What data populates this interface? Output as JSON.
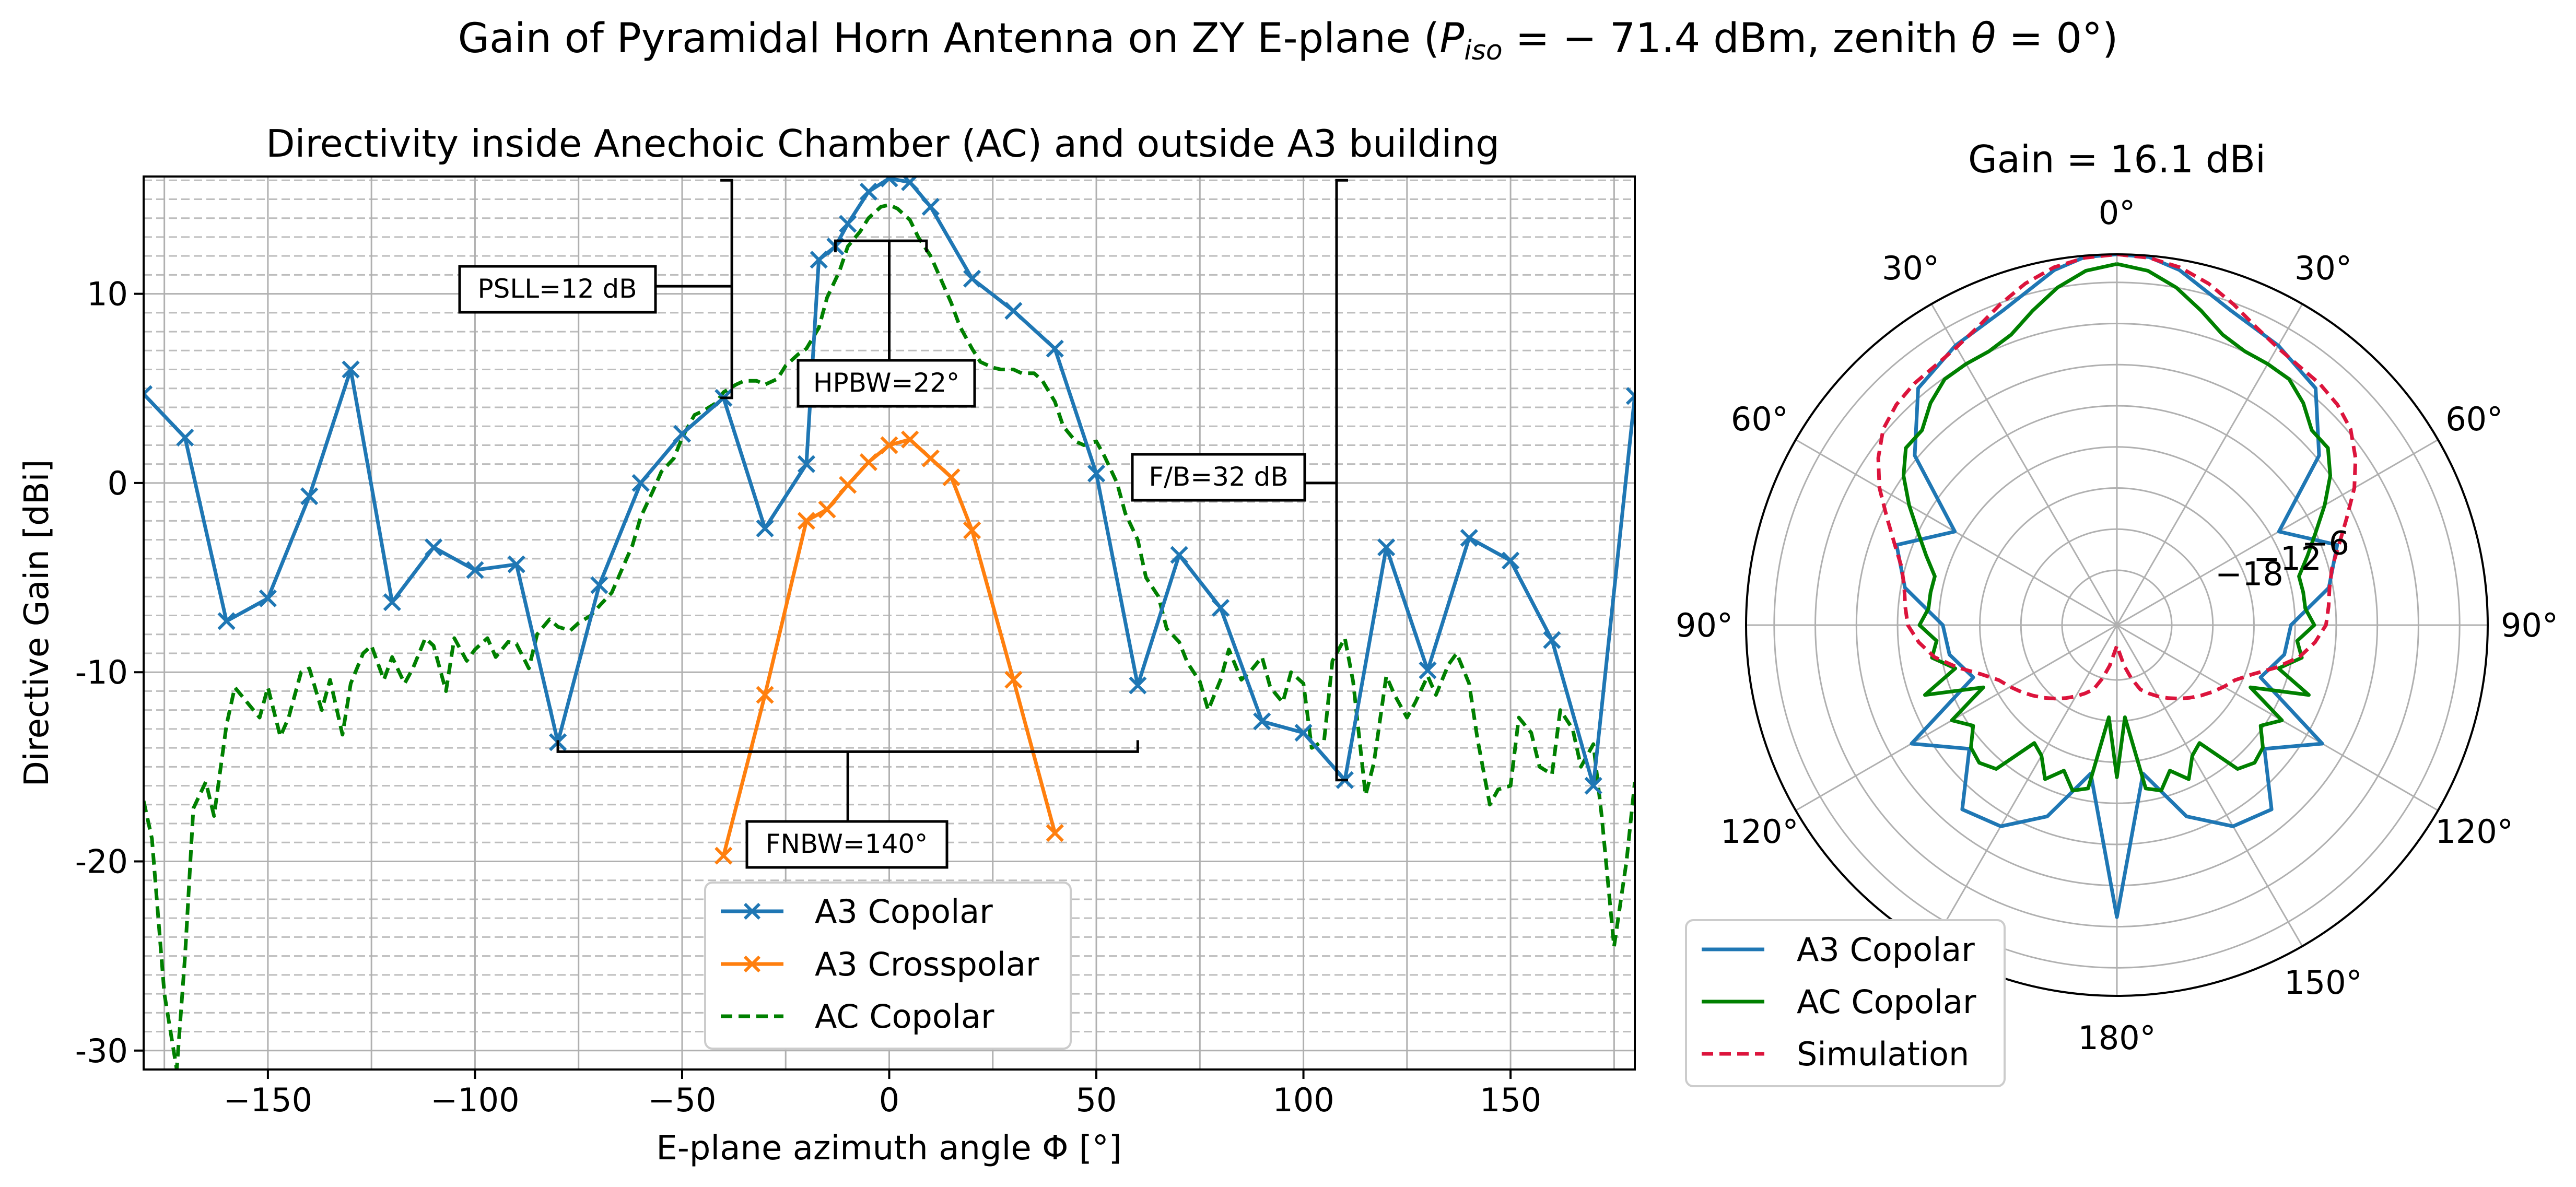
{
  "figure": {
    "title_prefix": "Gain of Pyramidal Horn Antenna on ZY E-plane (",
    "title_p": "P",
    "title_p_sub": "iso",
    "title_mid": " = − 71.4 dBm, zenith ",
    "title_theta": "θ",
    "title_suffix": " = 0°)"
  },
  "chart_data": [
    {
      "type": "line",
      "title": "Directivity inside Anechoic Chamber (AC) and outside A3 building",
      "xlabel": "E-plane azimuth angle Φ [°]",
      "ylabel": "Directive Gain [dBi]",
      "xlim": [
        -180,
        180
      ],
      "ylim": [
        -31,
        16.2
      ],
      "x_ticks": [
        -150,
        -100,
        -50,
        0,
        50,
        100,
        150
      ],
      "x_tick_labels": [
        "−150",
        "−100",
        "−50",
        "0",
        "50",
        "100",
        "150"
      ],
      "y_ticks": [
        -30,
        -20,
        -10,
        0,
        10
      ],
      "y_tick_labels": [
        "-30",
        "-20",
        "-10",
        "0",
        "10"
      ],
      "grid": true,
      "legend_position": "lower-center",
      "series": [
        {
          "name": "A3 Copolar",
          "color": "#1f77b4",
          "marker": "x",
          "x": [
            -180,
            -170,
            -160,
            -150,
            -140,
            -130,
            -120,
            -110,
            -100,
            -90,
            -80,
            -70,
            -60,
            -50,
            -40,
            -30,
            -20,
            -17,
            -13,
            -10,
            -5,
            0,
            5,
            10,
            20,
            30,
            40,
            50,
            60,
            70,
            80,
            90,
            100,
            110,
            120,
            130,
            140,
            150,
            160,
            170,
            180
          ],
          "y": [
            4.7,
            2.4,
            -7.3,
            -6.1,
            -0.7,
            6.0,
            -6.3,
            -3.4,
            -4.6,
            -4.3,
            -13.7,
            -5.4,
            0.0,
            2.6,
            4.5,
            -2.4,
            1.0,
            11.8,
            12.5,
            13.7,
            15.4,
            16.1,
            15.9,
            14.6,
            10.8,
            9.1,
            7.1,
            0.5,
            -10.7,
            -3.8,
            -6.6,
            -12.6,
            -13.2,
            -15.7,
            -3.4,
            -9.9,
            -2.9,
            -4.1,
            -8.3,
            -16.0,
            4.6
          ]
        },
        {
          "name": "A3 Crosspolar",
          "color": "#ff7f0e",
          "marker": "x",
          "x": [
            -40,
            -30,
            -20,
            -15,
            -10,
            -5,
            0,
            5,
            10,
            15,
            20,
            30,
            40
          ],
          "y": [
            -19.7,
            -11.2,
            -2.0,
            -1.4,
            -0.1,
            1.1,
            2.0,
            2.3,
            1.3,
            0.3,
            -2.5,
            -10.4,
            -18.5
          ]
        },
        {
          "name": "AC Copolar",
          "color": "#008000",
          "dashed": true,
          "x": [
            -180,
            -178,
            -175,
            -172,
            -170,
            -168,
            -165,
            -163,
            -160,
            -158,
            -155,
            -152,
            -150,
            -147,
            -145,
            -142,
            -140,
            -137,
            -135,
            -132,
            -130,
            -127,
            -125,
            -122,
            -120,
            -117,
            -115,
            -112,
            -110,
            -107,
            -105,
            -102,
            -100,
            -97,
            -95,
            -92,
            -90,
            -87,
            -85,
            -82,
            -80,
            -77,
            -75,
            -72,
            -70,
            -67,
            -65,
            -62,
            -60,
            -57,
            -55,
            -52,
            -50,
            -47,
            -45,
            -42,
            -40,
            -37,
            -35,
            -32,
            -30,
            -27,
            -25,
            -22,
            -20,
            -17,
            -15,
            -12,
            -10,
            -7,
            -5,
            -2,
            0,
            2,
            5,
            7,
            10,
            12,
            15,
            17,
            20,
            22,
            25,
            27,
            30,
            32,
            35,
            37,
            40,
            42,
            45,
            47,
            50,
            52,
            55,
            57,
            60,
            62,
            65,
            67,
            70,
            72,
            75,
            77,
            80,
            82,
            85,
            87,
            90,
            92,
            95,
            97,
            100,
            102,
            105,
            107,
            110,
            112,
            115,
            117,
            120,
            122,
            125,
            127,
            130,
            132,
            135,
            137,
            140,
            142,
            145,
            147,
            150,
            152,
            155,
            157,
            160,
            162,
            165,
            167,
            170,
            172,
            175,
            178,
            180
          ],
          "y": [
            -16.8,
            -18.8,
            -27.0,
            -31.0,
            -25.0,
            -17.2,
            -15.8,
            -17.6,
            -12.8,
            -10.8,
            -11.6,
            -12.4,
            -10.8,
            -13.4,
            -12.4,
            -10.0,
            -9.8,
            -12.0,
            -10.4,
            -13.3,
            -10.6,
            -9.0,
            -8.6,
            -10.4,
            -9.2,
            -10.6,
            -9.8,
            -8.2,
            -8.6,
            -11.0,
            -8.2,
            -9.4,
            -8.8,
            -8.2,
            -9.2,
            -8.4,
            -8.5,
            -9.8,
            -8.0,
            -7.2,
            -7.6,
            -7.8,
            -7.4,
            -7.0,
            -6.5,
            -5.8,
            -4.8,
            -3.3,
            -1.8,
            -0.4,
            0.6,
            1.3,
            2.4,
            3.6,
            3.8,
            4.2,
            4.8,
            5.2,
            5.4,
            5.4,
            5.2,
            5.5,
            6.2,
            6.8,
            7.1,
            8.2,
            9.8,
            11.2,
            12.5,
            13.3,
            14.0,
            14.6,
            14.7,
            14.5,
            13.9,
            13.0,
            12.0,
            11.0,
            9.5,
            8.3,
            7.1,
            6.4,
            6.1,
            6.0,
            6.0,
            5.8,
            5.8,
            5.4,
            4.3,
            3.0,
            2.2,
            2.0,
            2.2,
            1.4,
            0.0,
            -1.6,
            -3.0,
            -5.0,
            -6.0,
            -7.7,
            -8.4,
            -9.5,
            -10.5,
            -12.0,
            -10.4,
            -8.8,
            -10.4,
            -10.0,
            -9.2,
            -10.8,
            -11.6,
            -10.0,
            -10.6,
            -14.0,
            -13.6,
            -9.4,
            -8.2,
            -10.5,
            -16.5,
            -14.8,
            -10.2,
            -11.2,
            -12.4,
            -11.6,
            -10.2,
            -11.2,
            -9.6,
            -9.0,
            -10.6,
            -13.5,
            -17.0,
            -16.2,
            -16.0,
            -12.4,
            -13.2,
            -15.0,
            -15.4,
            -12.0,
            -13.0,
            -15.0,
            -13.8,
            -17.6,
            -24.5,
            -20.0,
            -15.8
          ]
        }
      ],
      "annotations": [
        {
          "label": "PSLL=12 dB"
        },
        {
          "label": "HPBW=22°"
        },
        {
          "label": "F/B=32 dB"
        },
        {
          "label": "FNBW=140°"
        }
      ]
    },
    {
      "type": "polar",
      "title": "Gain = 16.1 dBi",
      "angle_labels": [
        "0°",
        "30°",
        "60°",
        "90°",
        "120°",
        "150°",
        "180°",
        "150°",
        "120°",
        "90°",
        "60°",
        "30°"
      ],
      "angle_label_degrees": [
        0,
        30,
        60,
        90,
        120,
        150,
        180,
        210,
        240,
        270,
        300,
        330
      ],
      "r_labels": [
        "−6",
        "−12",
        "−18"
      ],
      "r_label_values": [
        -6,
        -12,
        -18
      ],
      "r_range": [
        -38,
        16.1
      ],
      "grid": true,
      "legend_position": "lower-left",
      "series": [
        {
          "name": "A3 Copolar",
          "color": "#1f77b4",
          "theta": [
            0,
            5,
            10,
            20,
            30,
            40,
            50,
            60,
            70,
            80,
            90,
            100,
            110,
            120,
            130,
            140,
            150,
            160,
            170,
            180,
            190,
            200,
            210,
            220,
            230,
            240,
            250,
            260,
            270,
            280,
            290,
            300,
            310,
            320,
            330,
            340,
            350,
            355,
            360
          ],
          "r": [
            16.1,
            15.9,
            14.6,
            10.8,
            9.1,
            7.1,
            0.5,
            -10.7,
            -3.8,
            -6.6,
            -12.6,
            -13.2,
            -15.7,
            -3.4,
            -9.9,
            -2.9,
            -4.1,
            -8.3,
            -16.0,
            4.6,
            -16.0,
            -8.3,
            -4.1,
            -2.9,
            -9.9,
            -3.4,
            -15.7,
            -13.2,
            -12.6,
            -6.6,
            -3.8,
            -10.7,
            0.5,
            7.1,
            9.1,
            10.8,
            14.6,
            15.9,
            16.1
          ]
        },
        {
          "name": "AC Copolar",
          "color": "#008000",
          "theta": [
            0,
            5,
            10,
            15,
            20,
            25,
            30,
            35,
            40,
            45,
            50,
            55,
            60,
            65,
            70,
            75,
            80,
            85,
            90,
            95,
            100,
            105,
            110,
            115,
            120,
            125,
            130,
            135,
            140,
            145,
            150,
            155,
            160,
            165,
            170,
            175,
            180,
            185,
            190,
            195,
            200,
            205,
            210,
            215,
            220,
            225,
            230,
            235,
            240,
            245,
            250,
            255,
            260,
            265,
            270,
            275,
            280,
            285,
            290,
            295,
            300,
            305,
            310,
            315,
            320,
            325,
            330,
            335,
            340,
            345,
            350,
            355,
            360
          ],
          "r": [
            14.7,
            13.9,
            12.0,
            9.5,
            7.1,
            6.1,
            6.0,
            5.8,
            4.3,
            2.2,
            2.2,
            0.0,
            -3.0,
            -6.0,
            -8.4,
            -10.5,
            -10.4,
            -10.4,
            -9.2,
            -11.6,
            -10.6,
            -13.6,
            -8.2,
            -16.5,
            -10.2,
            -12.4,
            -10.2,
            -9.6,
            -10.6,
            -17.0,
            -16.0,
            -13.2,
            -15.4,
            -13.0,
            -13.8,
            -24.5,
            -15.8,
            -24.5,
            -13.8,
            -13.0,
            -15.4,
            -13.2,
            -16.0,
            -17.0,
            -10.6,
            -9.6,
            -10.2,
            -12.4,
            -10.2,
            -16.5,
            -8.2,
            -13.6,
            -10.6,
            -11.6,
            -9.2,
            -10.4,
            -10.4,
            -10.5,
            -8.4,
            -6.0,
            -3.0,
            0.0,
            2.2,
            2.2,
            4.3,
            5.8,
            6.0,
            6.1,
            7.1,
            9.5,
            12.0,
            13.9,
            14.7
          ]
        },
        {
          "name": "Simulation",
          "color": "#dc143c",
          "dashed": true,
          "theta": [
            0,
            5,
            10,
            15,
            20,
            25,
            30,
            35,
            40,
            45,
            50,
            55,
            60,
            65,
            70,
            75,
            80,
            85,
            90,
            95,
            100,
            105,
            110,
            115,
            120,
            125,
            130,
            135,
            140,
            145,
            150,
            155,
            160,
            165,
            170,
            175,
            180,
            185,
            190,
            195,
            200,
            205,
            210,
            215,
            220,
            225,
            230,
            235,
            240,
            245,
            250,
            255,
            260,
            265,
            270,
            275,
            280,
            285,
            290,
            295,
            300,
            305,
            310,
            315,
            320,
            325,
            330,
            335,
            340,
            345,
            350,
            355,
            360
          ],
          "r": [
            16.1,
            15.8,
            15.0,
            13.6,
            11.8,
            10.0,
            8.8,
            8.2,
            8.0,
            7.5,
            6.5,
            4.5,
            2.0,
            -1.0,
            -3.5,
            -5.5,
            -6.5,
            -7.0,
            -7.5,
            -9.0,
            -11.0,
            -14.0,
            -17.0,
            -19.0,
            -20.0,
            -21.0,
            -22.0,
            -23.0,
            -24.0,
            -25.0,
            -26.0,
            -27.0,
            -28.0,
            -30.0,
            -32.0,
            -34.0,
            -35.0,
            -34.0,
            -32.0,
            -30.0,
            -28.0,
            -27.0,
            -26.0,
            -25.0,
            -24.0,
            -23.0,
            -22.0,
            -21.0,
            -20.0,
            -19.0,
            -17.0,
            -14.0,
            -11.0,
            -9.0,
            -7.5,
            -7.0,
            -6.5,
            -5.5,
            -3.5,
            -1.0,
            2.0,
            4.5,
            6.5,
            7.5,
            8.0,
            8.2,
            8.8,
            10.0,
            11.8,
            13.6,
            15.0,
            15.8,
            16.1
          ]
        }
      ]
    }
  ]
}
